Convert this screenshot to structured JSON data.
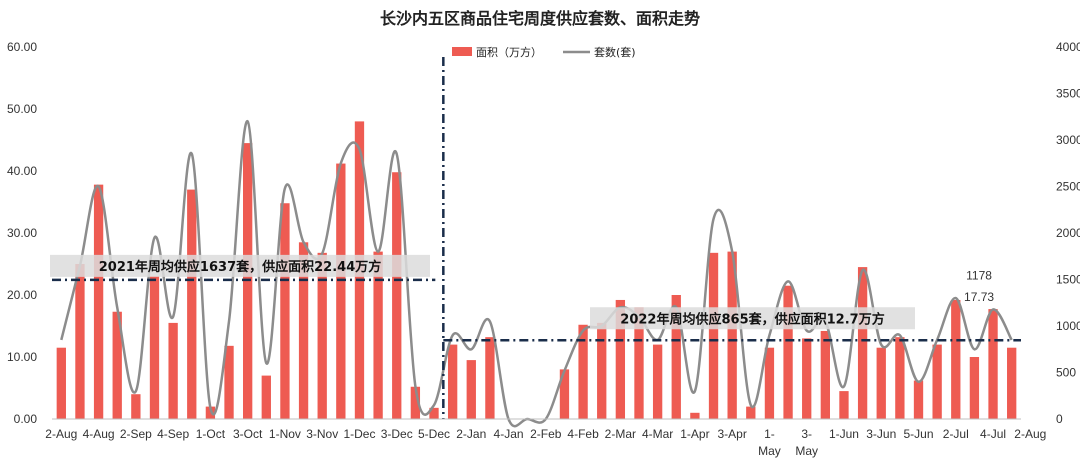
{
  "chart_data": {
    "type": "bar",
    "title": "长沙内五区商品住宅周度供应套数、面积走势",
    "legend_position": "top",
    "colors": {
      "area": "#EE5B52",
      "units": "#8C8C8C",
      "reference": "#1A2D4A",
      "note_box": "#DCDCDC"
    },
    "ylim": [
      0,
      60
    ],
    "y_ticks": [
      "0.00",
      "10.00",
      "20.00",
      "30.00",
      "40.00",
      "50.00",
      "60.00"
    ],
    "y2lim": [
      0,
      4000
    ],
    "y2_ticks": [
      "0",
      "500",
      "1000",
      "1500",
      "2000",
      "2500",
      "3000",
      "3500",
      "4000"
    ],
    "x_tick_labels": [
      {
        "i": 0,
        "lines": [
          "2-Aug"
        ]
      },
      {
        "i": 2,
        "lines": [
          "4-Aug"
        ]
      },
      {
        "i": 4,
        "lines": [
          "2-Sep"
        ]
      },
      {
        "i": 6,
        "lines": [
          "4-Sep"
        ]
      },
      {
        "i": 8,
        "lines": [
          "1-Oct"
        ]
      },
      {
        "i": 10,
        "lines": [
          "3-Oct"
        ]
      },
      {
        "i": 12,
        "lines": [
          "1-Nov"
        ]
      },
      {
        "i": 14,
        "lines": [
          "3-Nov"
        ]
      },
      {
        "i": 16,
        "lines": [
          "1-Dec"
        ]
      },
      {
        "i": 18,
        "lines": [
          "3-Dec"
        ]
      },
      {
        "i": 20,
        "lines": [
          "5-Dec"
        ]
      },
      {
        "i": 22,
        "lines": [
          "2-Jan"
        ]
      },
      {
        "i": 24,
        "lines": [
          "4-Jan"
        ]
      },
      {
        "i": 26,
        "lines": [
          "2-Feb"
        ]
      },
      {
        "i": 28,
        "lines": [
          "4-Feb"
        ]
      },
      {
        "i": 30,
        "lines": [
          "2-Mar"
        ]
      },
      {
        "i": 32,
        "lines": [
          "4-Mar"
        ]
      },
      {
        "i": 34,
        "lines": [
          "1-Apr"
        ]
      },
      {
        "i": 36,
        "lines": [
          "3-Apr"
        ]
      },
      {
        "i": 38,
        "lines": [
          "1-",
          "May"
        ]
      },
      {
        "i": 40,
        "lines": [
          "3-",
          "May"
        ]
      },
      {
        "i": 42,
        "lines": [
          "1-Jun"
        ]
      },
      {
        "i": 44,
        "lines": [
          "3-Jun"
        ]
      },
      {
        "i": 46,
        "lines": [
          "5-Jun"
        ]
      },
      {
        "i": 48,
        "lines": [
          "2-Jul"
        ]
      },
      {
        "i": 50,
        "lines": [
          "4-Jul"
        ]
      },
      {
        "i": 52,
        "lines": [
          "2-Aug"
        ]
      }
    ],
    "series": [
      {
        "name": "面积（万方）",
        "type": "bar",
        "axis": "left",
        "values": [
          11.5,
          25.0,
          37.8,
          17.3,
          4.0,
          23.0,
          15.5,
          37.0,
          2.0,
          11.8,
          44.5,
          7.0,
          34.8,
          28.5,
          26.8,
          41.2,
          48.0,
          27.0,
          39.8,
          5.2,
          1.8,
          12.0,
          9.5,
          13.2,
          0,
          0,
          0,
          8.0,
          15.2,
          15.5,
          19.2,
          18.0,
          12.0,
          20.0,
          1.0,
          26.8,
          27.0,
          2.0,
          11.5,
          21.5,
          13.0,
          14.2,
          4.5,
          24.5,
          11.5,
          13.2,
          6.2,
          12.0,
          19.2,
          10.0,
          17.73,
          11.5
        ]
      },
      {
        "name": "套数(套)",
        "type": "line",
        "axis": "right",
        "values": [
          850,
          1650,
          2500,
          1200,
          300,
          1950,
          1100,
          2850,
          120,
          1050,
          3200,
          600,
          2480,
          1900,
          1780,
          2750,
          2900,
          1800,
          2850,
          350,
          150,
          900,
          750,
          1050,
          0,
          0,
          0,
          520,
          950,
          1000,
          1200,
          1100,
          850,
          1200,
          300,
          2150,
          1800,
          150,
          900,
          1480,
          950,
          1050,
          350,
          1600,
          800,
          900,
          400,
          850,
          1300,
          750,
          1178,
          850
        ]
      }
    ],
    "reference_lines": [
      {
        "label": "2021年周均供应1637套，供应面积22.44万方",
        "value": 22.44,
        "from_index": 0,
        "to_index": 20
      },
      {
        "label": "2022年周均供应865套，供应面积12.7万方",
        "value": 12.7,
        "from_index": 21,
        "to_index": 52
      }
    ],
    "divider_index": 20.5,
    "point_labels": [
      {
        "series": 1,
        "index": 50,
        "text": "1178"
      },
      {
        "series": 0,
        "index": 50,
        "text": "17.73"
      }
    ]
  }
}
